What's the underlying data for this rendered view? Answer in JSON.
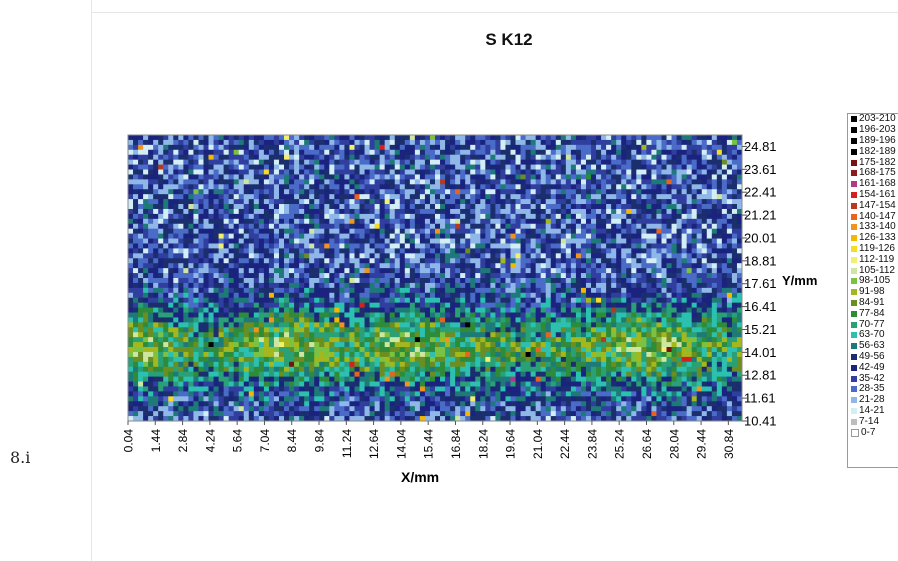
{
  "figure_label": "8.i",
  "chart_data": {
    "type": "heatmap",
    "title": "S K12",
    "xlabel": "X/mm",
    "ylabel": "Y/mm",
    "xlim": [
      0.04,
      31.54
    ],
    "ylim": [
      10.41,
      25.41
    ],
    "x_ticks": [
      "0.04",
      "1.44",
      "2.84",
      "4.24",
      "5.64",
      "7.04",
      "8.44",
      "9.84",
      "11.24",
      "12.64",
      "14.04",
      "15.44",
      "16.84",
      "18.24",
      "19.64",
      "21.04",
      "22.44",
      "23.84",
      "25.24",
      "26.64",
      "28.04",
      "29.44",
      "30.84"
    ],
    "y_ticks": [
      "10.41",
      "11.61",
      "12.81",
      "14.01",
      "15.21",
      "16.41",
      "17.61",
      "18.81",
      "20.01",
      "21.21",
      "22.41",
      "23.61",
      "24.81"
    ],
    "legend": [
      {
        "label": "203-210",
        "color": "#000000"
      },
      {
        "label": "196-203",
        "color": "#000000"
      },
      {
        "label": "189-196",
        "color": "#000000"
      },
      {
        "label": "182-189",
        "color": "#000000"
      },
      {
        "label": "175-182",
        "color": "#7a1010"
      },
      {
        "label": "168-175",
        "color": "#8b1a1a"
      },
      {
        "label": "161-168",
        "color": "#b03a8a"
      },
      {
        "label": "154-161",
        "color": "#d62020"
      },
      {
        "label": "147-154",
        "color": "#b83a1e"
      },
      {
        "label": "140-147",
        "color": "#e8641e"
      },
      {
        "label": "133-140",
        "color": "#f0941e"
      },
      {
        "label": "126-133",
        "color": "#f5b800"
      },
      {
        "label": "119-126",
        "color": "#f5dc28"
      },
      {
        "label": "112-119",
        "color": "#f2f06e"
      },
      {
        "label": "105-112",
        "color": "#cfe6a0"
      },
      {
        "label": "98-105",
        "color": "#7cc242"
      },
      {
        "label": "91-98",
        "color": "#a4b81e"
      },
      {
        "label": "84-91",
        "color": "#6b8e23"
      },
      {
        "label": "77-84",
        "color": "#2e8b3a"
      },
      {
        "label": "70-77",
        "color": "#2aa076"
      },
      {
        "label": "63-70",
        "color": "#2cc0b0"
      },
      {
        "label": "56-63",
        "color": "#1e7a78"
      },
      {
        "label": "49-56",
        "color": "#1b2f6e"
      },
      {
        "label": "42-49",
        "color": "#1a237e"
      },
      {
        "label": "35-42",
        "color": "#303f9f"
      },
      {
        "label": "28-35",
        "color": "#4a6bc8"
      },
      {
        "label": "21-28",
        "color": "#8fb8e8"
      },
      {
        "label": "14-21",
        "color": "#d4eef6"
      },
      {
        "label": "7-14",
        "color": "#bdbdbd"
      },
      {
        "label": "0-7",
        "color": "#ffffff"
      }
    ]
  }
}
